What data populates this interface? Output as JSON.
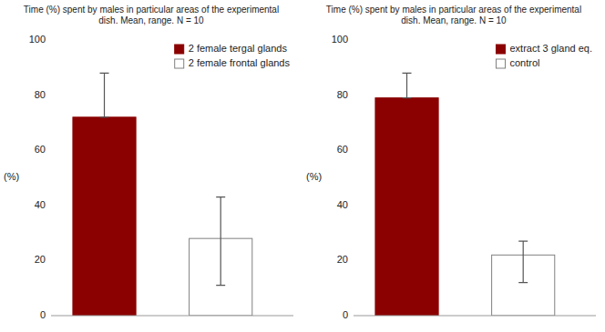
{
  "chart_data": [
    {
      "type": "bar",
      "title": "Time (%) spent by males in particular areas of the experimental\ndish. Mean, range. N = 10",
      "ylabel": "(%)",
      "series": [
        {
          "name": "2 female tergal glands",
          "color": "#8B0000",
          "values": [
            72
          ],
          "err_down": [
            0
          ],
          "err_up": [
            16
          ]
        },
        {
          "name": "2 female frontal glands",
          "color": "#ffffff",
          "values": [
            28
          ],
          "err_down": [
            17
          ],
          "err_up": [
            15
          ]
        }
      ],
      "ylim": [
        0,
        100
      ],
      "yticks": [
        0,
        20,
        40,
        60,
        80,
        100
      ],
      "grid": false,
      "legend": "upper right",
      "tick_labels": "y"
    },
    {
      "type": "bar",
      "title": "Time (%) spent by males in particular areas of the experimental\ndish. Mean, range. N = 10",
      "ylabel": "(%)",
      "series": [
        {
          "name": "extract 3 gland eq.",
          "color": "#8B0000",
          "values": [
            79
          ],
          "err_down": [
            0
          ],
          "err_up": [
            9
          ]
        },
        {
          "name": "control",
          "color": "#ffffff",
          "values": [
            22
          ],
          "err_down": [
            10
          ],
          "err_up": [
            5
          ]
        }
      ],
      "ylim": [
        0,
        100
      ],
      "yticks": [
        0,
        20,
        40,
        60,
        80,
        100
      ],
      "grid": false,
      "legend": "upper right",
      "tick_labels": "y"
    }
  ]
}
